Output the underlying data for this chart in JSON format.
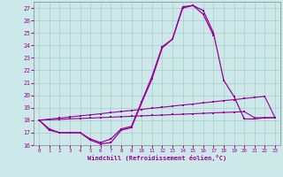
{
  "xlabel": "Windchill (Refroidissement éolien,°C)",
  "background_color": "#cce8e8",
  "grid_color": "#aacccc",
  "line_color": "#990099",
  "x_full": [
    0,
    1,
    2,
    3,
    4,
    5,
    6,
    7,
    8,
    9,
    10,
    11,
    12,
    13,
    14,
    15,
    16,
    17,
    18,
    19,
    20,
    21,
    22,
    23
  ],
  "line_main": [
    18.0,
    17.3,
    17.0,
    17.0,
    17.0,
    16.5,
    16.2,
    16.5,
    17.3,
    17.5,
    19.5,
    21.5,
    23.9,
    24.5,
    27.1,
    27.2,
    26.8,
    25.0,
    21.2,
    19.9,
    18.1,
    18.1,
    18.2,
    18.2
  ],
  "line_partial_x": [
    0,
    1,
    2,
    3,
    4,
    5,
    6,
    7,
    8,
    9,
    10,
    11,
    12,
    13,
    14,
    15,
    16,
    17
  ],
  "line_partial": [
    18.0,
    17.2,
    17.0,
    17.0,
    17.0,
    16.4,
    16.1,
    16.2,
    17.2,
    17.4,
    19.4,
    21.3,
    23.8,
    24.5,
    27.0,
    27.2,
    26.5,
    24.8
  ],
  "line_rise_x": [
    0,
    1,
    2,
    3,
    4,
    5,
    6,
    7,
    8,
    9,
    10,
    11,
    12,
    13,
    14,
    15,
    16,
    17,
    18,
    19,
    20,
    21,
    22,
    23
  ],
  "line_rise": [
    18.0,
    18.09,
    18.17,
    18.26,
    18.35,
    18.43,
    18.52,
    18.61,
    18.7,
    18.78,
    18.87,
    18.96,
    19.04,
    19.13,
    19.22,
    19.3,
    19.39,
    19.48,
    19.57,
    19.65,
    19.74,
    19.83,
    19.91,
    18.2
  ],
  "line_flat_x": [
    0,
    1,
    2,
    3,
    4,
    5,
    6,
    7,
    8,
    9,
    10,
    11,
    12,
    13,
    14,
    15,
    16,
    17,
    18,
    19,
    20,
    21,
    22,
    23
  ],
  "line_flat": [
    18.0,
    18.04,
    18.07,
    18.11,
    18.14,
    18.17,
    18.21,
    18.24,
    18.28,
    18.31,
    18.35,
    18.38,
    18.41,
    18.45,
    18.48,
    18.52,
    18.55,
    18.59,
    18.62,
    18.65,
    18.69,
    18.2,
    18.2,
    18.2
  ],
  "ylim": [
    16,
    27.5
  ],
  "xlim": [
    -0.5,
    23.5
  ],
  "yticks": [
    16,
    17,
    18,
    19,
    20,
    21,
    22,
    23,
    24,
    25,
    26,
    27
  ],
  "xticks": [
    0,
    1,
    2,
    3,
    4,
    5,
    6,
    7,
    8,
    9,
    10,
    11,
    12,
    13,
    14,
    15,
    16,
    17,
    18,
    19,
    20,
    21,
    22,
    23
  ]
}
